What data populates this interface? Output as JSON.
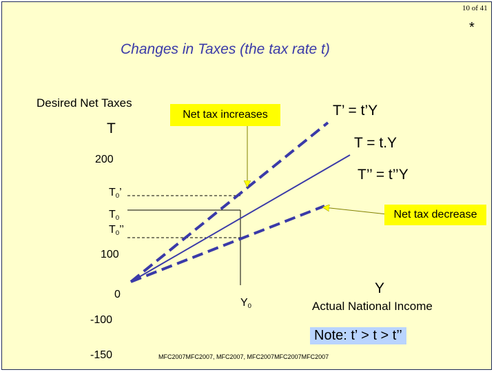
{
  "page_number": "10 of 41",
  "star": "*",
  "title": "Changes in Taxes (the tax rate t)",
  "colors": {
    "background": "#ffffcc",
    "title": "#3a3aa8",
    "line": "#3a3aa8",
    "callout": "#ffff00",
    "note": "#b9d4ff"
  },
  "chart_data": {
    "type": "line",
    "ylabel": "Desired Net Taxes",
    "ylabel_symbol": "T",
    "xlabel": "Actual National Income",
    "xlabel_symbol": "Y",
    "y_ticks": [
      "200",
      "100",
      "0",
      "-100",
      "-150"
    ],
    "x_ticks": [
      {
        "text": "Y",
        "sub": "0"
      }
    ],
    "series": [
      {
        "name": "T’ = t’Y",
        "style": "dashed",
        "start": [
          0,
          0
        ],
        "direction": [
          1,
          0.95
        ]
      },
      {
        "name": "T = t.Y",
        "style": "solid",
        "start": [
          0,
          0
        ],
        "direction": [
          1,
          0.73
        ]
      },
      {
        "name": "T’’ = t’’Y",
        "style": "dashed",
        "start": [
          0,
          0
        ],
        "direction": [
          1,
          0.4
        ]
      }
    ],
    "reference_levels": [
      {
        "label": "T",
        "sub": "0",
        "suffix": "’",
        "style": "dashed"
      },
      {
        "label": "T",
        "sub": "0",
        "suffix": "",
        "style": "solid"
      },
      {
        "label": "T",
        "sub": "0",
        "suffix": "’’",
        "style": "dashed"
      }
    ],
    "annotations": {
      "increase": "Net tax increases",
      "decrease": "Net tax decrease",
      "note": "Note:  t’ > t > t’’"
    }
  },
  "footer": "MFC2007MFC2007, MFC2007, MFC2007MFC2007MFC2007"
}
